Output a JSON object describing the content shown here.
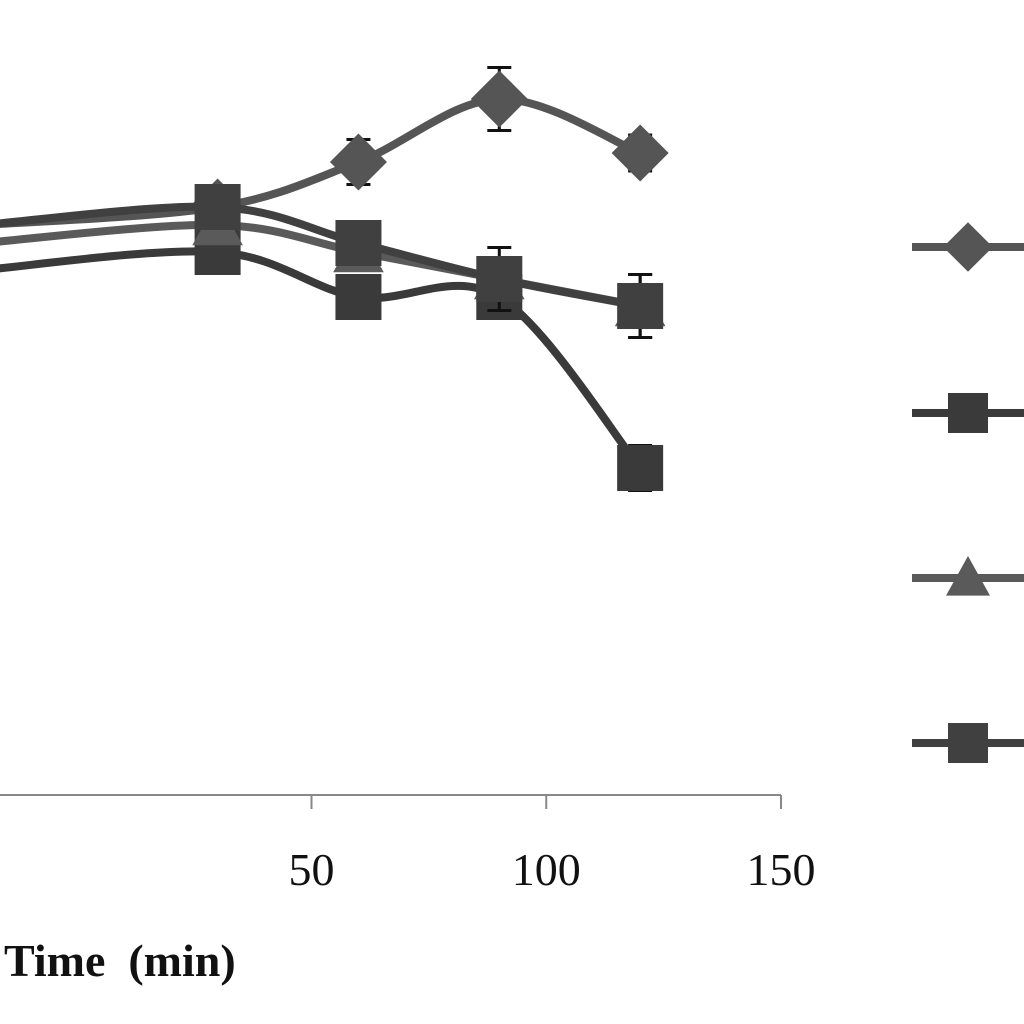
{
  "chart_data": {
    "type": "line",
    "title": "",
    "xlabel": "Time  (min)",
    "ylabel": "",
    "xlim": [
      -50,
      150
    ],
    "ylim": [
      0,
      100
    ],
    "x_ticks": [
      50,
      100,
      150
    ],
    "grid": false,
    "legend_position": "right",
    "series": [
      {
        "marker": "diamond",
        "color": "#555555",
        "x": [
          30,
          60,
          90,
          120
        ],
        "y": [
          77,
          82,
          89,
          83
        ],
        "error": [
          null,
          2.5,
          3.5,
          2
        ]
      },
      {
        "marker": "square",
        "color": "#3a3a3a",
        "x": [
          30,
          60,
          90,
          120
        ],
        "y": [
          72,
          67,
          67,
          48
        ],
        "error": [
          null,
          null,
          null,
          2.5
        ]
      },
      {
        "marker": "triangle",
        "color": "#5a5a5a",
        "x": [
          30,
          60,
          90,
          120
        ],
        "y": [
          75,
          72,
          69,
          66
        ],
        "error": [
          null,
          null,
          null,
          3.5
        ]
      },
      {
        "marker": "square",
        "color": "#404040",
        "x": [
          30,
          60,
          90,
          120
        ],
        "y": [
          77,
          73,
          69,
          66
        ],
        "error": [
          null,
          null,
          3.5,
          3.5
        ]
      }
    ]
  }
}
